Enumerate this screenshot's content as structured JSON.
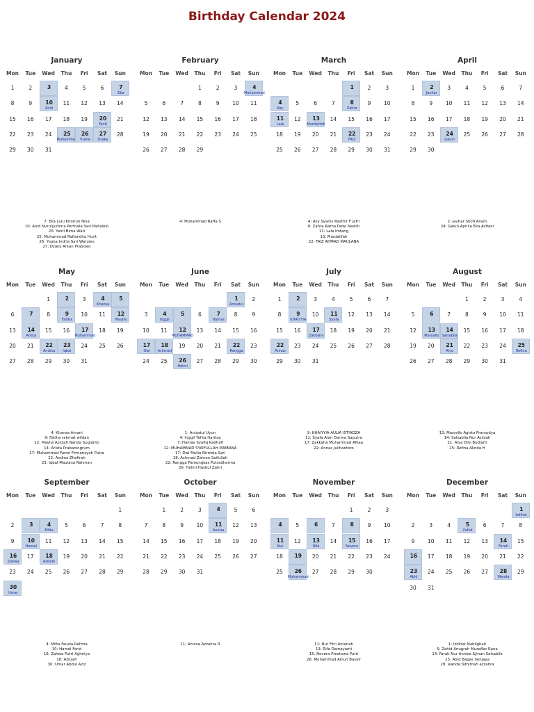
{
  "title": "Birthday Calendar 2024",
  "weekday_labels": [
    "Mon",
    "Tue",
    "Wed",
    "Thu",
    "Fri",
    "Sat",
    "Sun"
  ],
  "colors": {
    "title": "#8b1a1a",
    "highlight": "#c5d3e6",
    "name": "#1a2a9a"
  },
  "months": [
    {
      "name": "January",
      "start_offset": 0,
      "days": 31,
      "birthdays": [
        {
          "day": 3,
          "name": ""
        },
        {
          "day": 7,
          "name": "Eka"
        },
        {
          "day": 10,
          "name": "Andi"
        },
        {
          "day": 20,
          "name": "Yanti"
        },
        {
          "day": 25,
          "name": "Muhammad"
        },
        {
          "day": 26,
          "name": "Yuana"
        },
        {
          "day": 27,
          "name": "Dzaky"
        }
      ],
      "legend": [
        "7: Eka Lulu Khoirun Nisa",
        "10: Andi Nurulyumina Permata Sari Pattalolo",
        "20: Yanti Bima Wati",
        "25: Muhammad Rafiandha Hurit",
        "26: Yuana Indria Sari Waruwu",
        "27: Dzaky Arkan Prabowo"
      ]
    },
    {
      "name": "February",
      "start_offset": 3,
      "days": 29,
      "birthdays": [
        {
          "day": 4,
          "name": "Muhammad"
        }
      ],
      "legend": [
        "4: Muhammad Raffa S"
      ]
    },
    {
      "name": "March",
      "start_offset": 4,
      "days": 31,
      "birthdays": [
        {
          "day": 1,
          "name": ""
        },
        {
          "day": 4,
          "name": "Azy"
        },
        {
          "day": 8,
          "name": "Zahra"
        },
        {
          "day": 11,
          "name": "Lala"
        },
        {
          "day": 13,
          "name": "Murdalifah"
        },
        {
          "day": 22,
          "name": "FAIZ"
        }
      ],
      "legend": [
        "4: Azy Syams Rasthir F jafri",
        "8: Zahra Ratna Dewi Nastiti",
        "11: Lala Imtang",
        "13: Murdalifah",
        "22: FAIZ AHMAD MAULANA"
      ]
    },
    {
      "name": "April",
      "start_offset": 0,
      "days": 30,
      "birthdays": [
        {
          "day": 2,
          "name": "Jauhar"
        },
        {
          "day": 24,
          "name": "Galuh"
        }
      ],
      "legend": [
        "2: Jauhar Shofi Anam",
        "24: Galuh Aprilia Eka Avfiani"
      ]
    },
    {
      "name": "May",
      "start_offset": 2,
      "days": 31,
      "birthdays": [
        {
          "day": 2,
          "name": ""
        },
        {
          "day": 4,
          "name": "Khansa"
        },
        {
          "day": 5,
          "name": ""
        },
        {
          "day": 7,
          "name": ""
        },
        {
          "day": 9,
          "name": "Fatiha"
        },
        {
          "day": 12,
          "name": "Maylia"
        },
        {
          "day": 14,
          "name": "Arista"
        },
        {
          "day": 17,
          "name": "Muhammad"
        },
        {
          "day": 22,
          "name": "Andina"
        },
        {
          "day": 23,
          "name": "Iqbal"
        }
      ],
      "legend": [
        "4: Khansa Amani",
        "9: Fatiha rahmat wildan",
        "12: Maylia Aziizah Nanda Sugianto",
        "14: Arista Prabaningrum",
        "17: Muhammad Farrel Firmansyah Putra",
        "22: Andina Zhafirah",
        "23: Iqbal Maulana Rahman"
      ]
    },
    {
      "name": "June",
      "start_offset": 5,
      "days": 30,
      "birthdays": [
        {
          "day": 1,
          "name": "Anisatul"
        },
        {
          "day": 4,
          "name": "Inggil"
        },
        {
          "day": 5,
          "name": ""
        },
        {
          "day": 7,
          "name": "Hamas"
        },
        {
          "day": 12,
          "name": "MUHAMMAD"
        },
        {
          "day": 17,
          "name": "Dwi"
        },
        {
          "day": 18,
          "name": "Achmad"
        },
        {
          "day": 22,
          "name": "Rangga"
        },
        {
          "day": 26,
          "name": "Helmi"
        }
      ],
      "legend": [
        "1: Anisatul Uyun",
        "4: Inggil Tahta Haritsa",
        "7: Hamas Syafiq Kadhafi",
        "12: MUHAMMAD SYAIFULLAH MAIBANA",
        "17: Dwi Mutia Nirmala Sari",
        "18: Achmad Zahron Saifullah",
        "22: Rangga Pamungkas Putradharma",
        "26: Helmi Hasbul Zahri"
      ]
    },
    {
      "name": "July",
      "start_offset": 0,
      "days": 31,
      "birthdays": [
        {
          "day": 2,
          "name": ""
        },
        {
          "day": 9,
          "name": "KHAIYYIA"
        },
        {
          "day": 11,
          "name": "Syafa"
        },
        {
          "day": 17,
          "name": "Zakkaha"
        },
        {
          "day": 22,
          "name": "Annas"
        }
      ],
      "legend": [
        "9: KHAIYYIA AULIA ISTIADZA",
        "11: Syafa Alan Darma Saputra",
        "17: Zakkaha Muhammad Afkaa",
        "22: Annas Julihantoro"
      ]
    },
    {
      "name": "August",
      "start_offset": 3,
      "days": 31,
      "birthdays": [
        {
          "day": 6,
          "name": ""
        },
        {
          "day": 13,
          "name": "Marcello"
        },
        {
          "day": 14,
          "name": "Salsabila"
        },
        {
          "day": 21,
          "name": "Alya"
        },
        {
          "day": 25,
          "name": "Refina"
        }
      ],
      "legend": [
        "13: Marcello Agisto Pramudya",
        "14: Salsabila Nur Aziizah",
        "21: Alya Dini Budiarti",
        "25: Refina Alinda H"
      ]
    },
    {
      "name": "September",
      "start_offset": 6,
      "days": 30,
      "birthdays": [
        {
          "day": 3,
          "name": ""
        },
        {
          "day": 4,
          "name": "Mifta"
        },
        {
          "day": 10,
          "name": "Hamel"
        },
        {
          "day": 16,
          "name": "Zahwa"
        },
        {
          "day": 18,
          "name": "Aziizah"
        },
        {
          "day": 30,
          "name": "Umar"
        }
      ],
      "legend": [
        "4: Mifta Fauzia Rahma",
        "10: Hamel Farid",
        "16: Zahwa Putri Aghniya",
        "18: Aziizah",
        "30: Umar Abdul Aziz"
      ]
    },
    {
      "name": "October",
      "start_offset": 1,
      "days": 31,
      "birthdays": [
        {
          "day": 4,
          "name": ""
        },
        {
          "day": 11,
          "name": "Annisa"
        }
      ],
      "legend": [
        "11: Annisa Azzahra R"
      ]
    },
    {
      "name": "November",
      "start_offset": 4,
      "days": 30,
      "birthdays": [
        {
          "day": 4,
          "name": ""
        },
        {
          "day": 6,
          "name": ""
        },
        {
          "day": 8,
          "name": ""
        },
        {
          "day": 11,
          "name": "Nur"
        },
        {
          "day": 13,
          "name": "Rifa"
        },
        {
          "day": 15,
          "name": "Novera"
        },
        {
          "day": 19,
          "name": ""
        },
        {
          "day": 26,
          "name": "Muhammad"
        }
      ],
      "legend": [
        "11: Nur Fitri Amanah",
        "13: Rifa Damayanti",
        "15: Novera Prestiana Putri",
        "26: Muhammad Ainun Basyir"
      ]
    },
    {
      "name": "December",
      "start_offset": 6,
      "days": 31,
      "birthdays": [
        {
          "day": 1,
          "name": "Izdihar"
        },
        {
          "day": 5,
          "name": "Zahid"
        },
        {
          "day": 14,
          "name": "Farah"
        },
        {
          "day": 16,
          "name": ""
        },
        {
          "day": 23,
          "name": "Abid"
        },
        {
          "day": 28,
          "name": "Wanda"
        }
      ],
      "legend": [
        "1: Izdihar Nabilghah",
        "5: Zahid Anugrah Muzaffar Rana",
        "14: Farah Nur Annisa &Jinan Salsabila",
        "23: Abid Bagas Senjaya",
        "28: wanda fathimah azzahra"
      ]
    }
  ]
}
